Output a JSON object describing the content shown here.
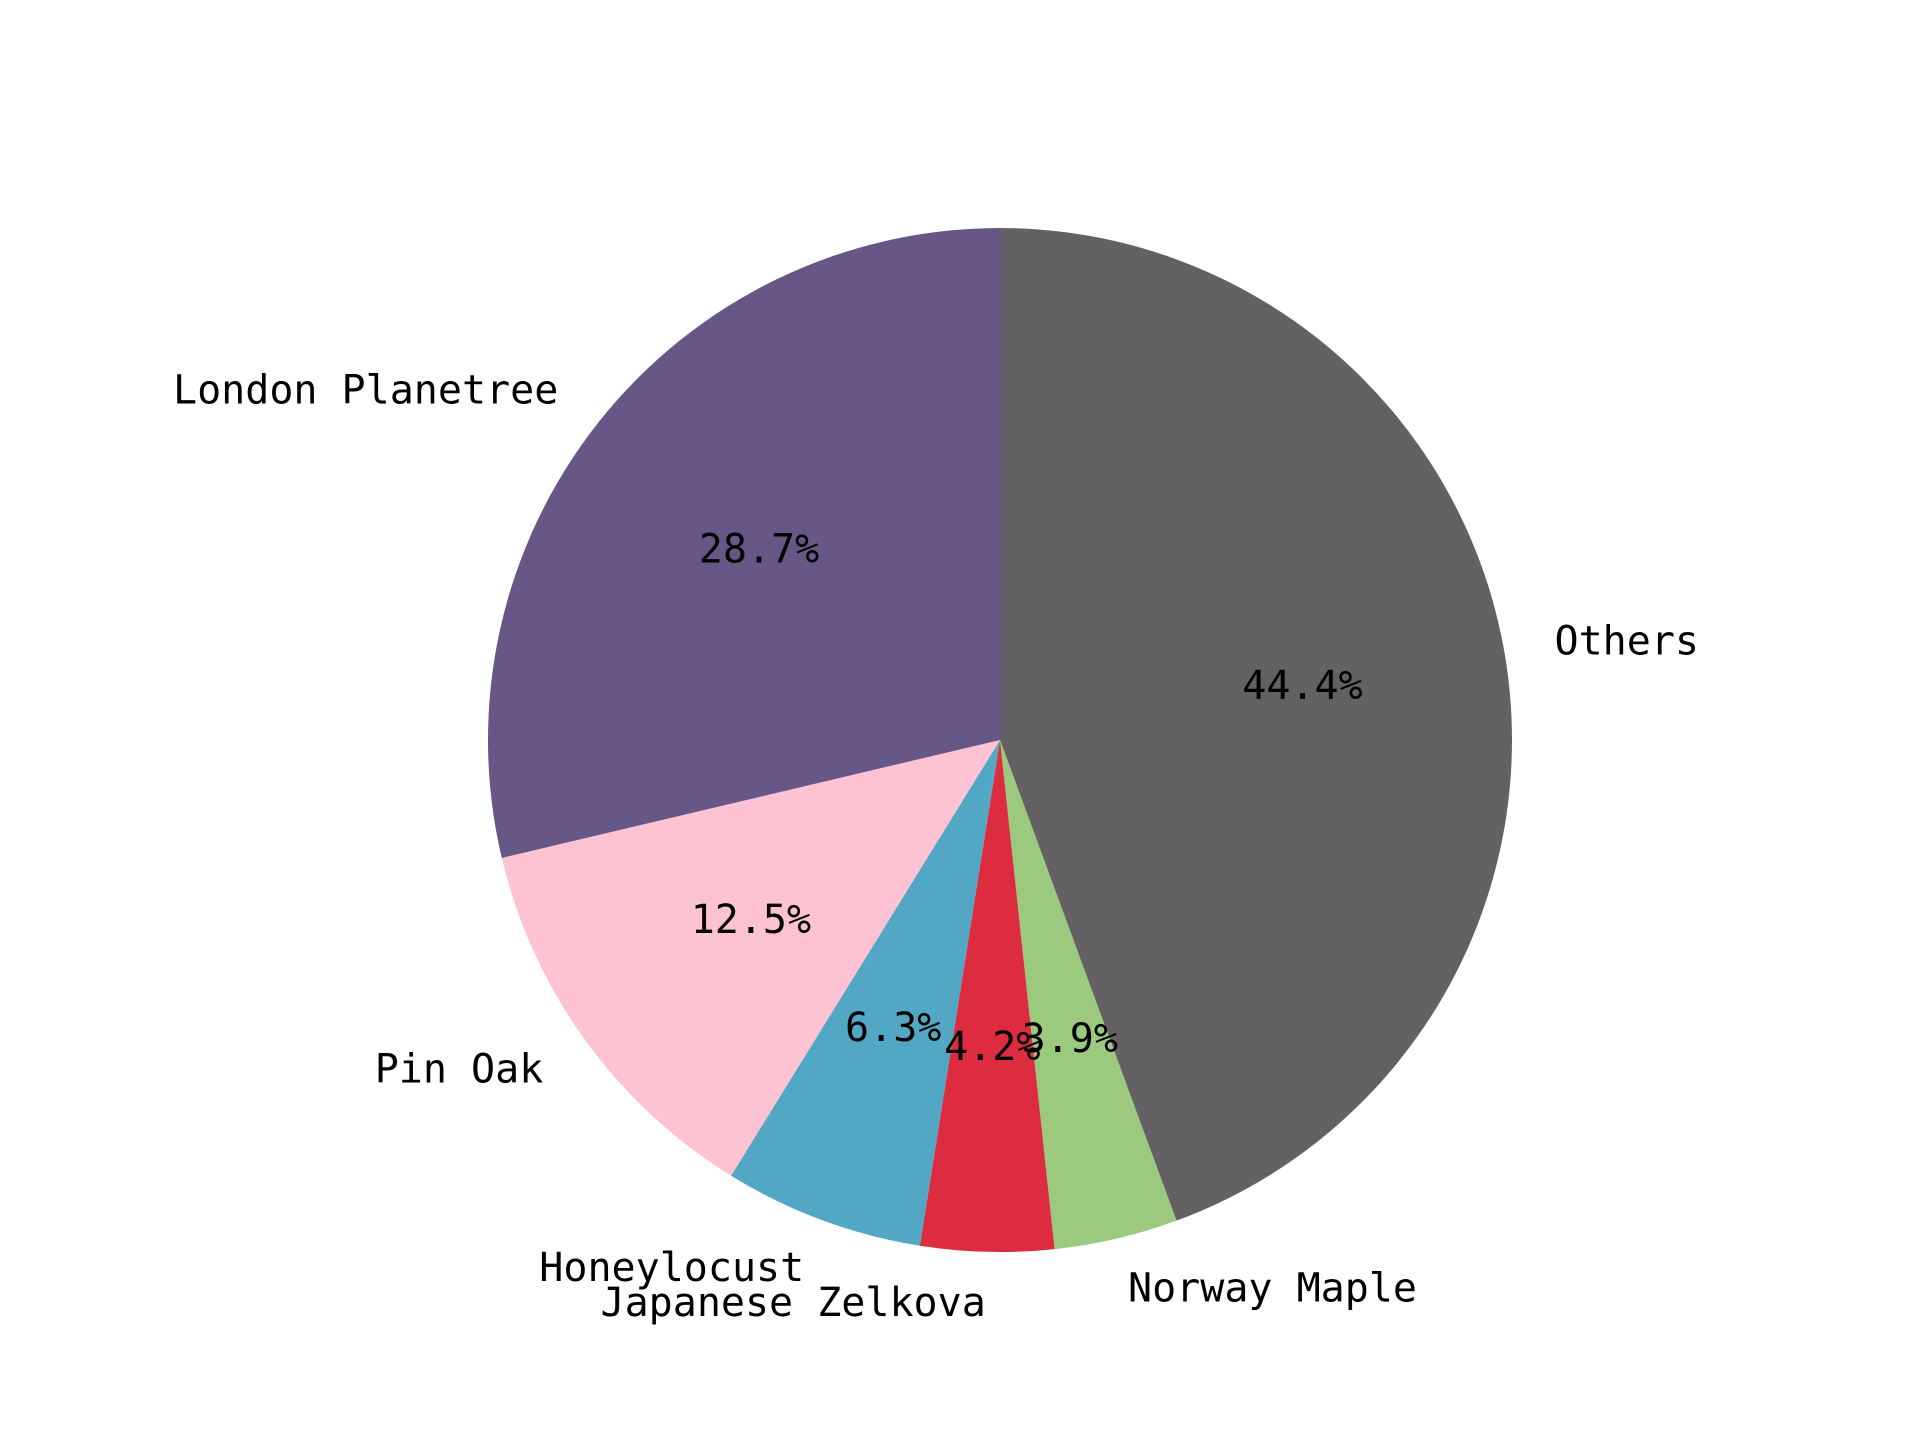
{
  "chart_data": {
    "type": "pie",
    "title": "",
    "start_angle": "top, clockwise from Others",
    "slices": [
      {
        "label": "Others",
        "value": 44.4,
        "pct_label": "44.4%",
        "color": "#636164"
      },
      {
        "label": "Norway Maple",
        "value": 3.9,
        "pct_label": "3.9%",
        "color": "#9bc97d"
      },
      {
        "label": "Japanese Zelkova",
        "value": 4.2,
        "pct_label": "4.2%",
        "color": "#dd2c3f"
      },
      {
        "label": "Honeylocust",
        "value": 6.3,
        "pct_label": "6.3%",
        "color": "#52a7c4"
      },
      {
        "label": "Pin Oak",
        "value": 12.5,
        "pct_label": "12.5%",
        "color": "#fdc3d2"
      },
      {
        "label": "London Planetree",
        "value": 28.7,
        "pct_label": "28.7%",
        "color": "#665787"
      }
    ]
  }
}
